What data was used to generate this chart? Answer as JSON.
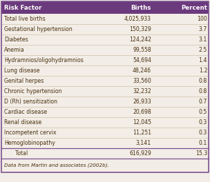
{
  "col_headers": [
    "Risk Factor",
    "Births",
    "Percent"
  ],
  "rows": [
    [
      "Total live births",
      "4,025,933",
      "100"
    ],
    [
      "Gestational hypertension",
      "150,329",
      "3.7"
    ],
    [
      "Diabetes",
      "124,242",
      "3.1"
    ],
    [
      "Anemia",
      "99,558",
      "2.5"
    ],
    [
      "Hydramnios/oligohydramnios",
      "54,694",
      "1.4"
    ],
    [
      "Lung disease",
      "48,246",
      "1.2"
    ],
    [
      "Genital herpes",
      "33,560",
      "0.8"
    ],
    [
      "Chronic hypertension",
      "32,232",
      "0.8"
    ],
    [
      "D (Rh) sensitization",
      "26,933",
      "0.7"
    ],
    [
      "Cardiac disease",
      "20,698",
      "0.5"
    ],
    [
      "Renal disease",
      "12,045",
      "0.3"
    ],
    [
      "Incompetent cervix",
      "11,251",
      "0.3"
    ],
    [
      "Hemoglobinopathy",
      "3,141",
      "0.1"
    ],
    [
      "Total",
      "616,929",
      "15.3"
    ]
  ],
  "footer": "Data from Martin and associates (2002b).",
  "header_bg": "#6B3A7D",
  "header_fg": "#FFFFFF",
  "row_bg": "#F2EDE6",
  "border_color": "#7B5090",
  "text_color": "#4A3010",
  "footer_color": "#4A3010",
  "sep_line_color": "#C8B89A",
  "total_sep_color": "#7B5090"
}
